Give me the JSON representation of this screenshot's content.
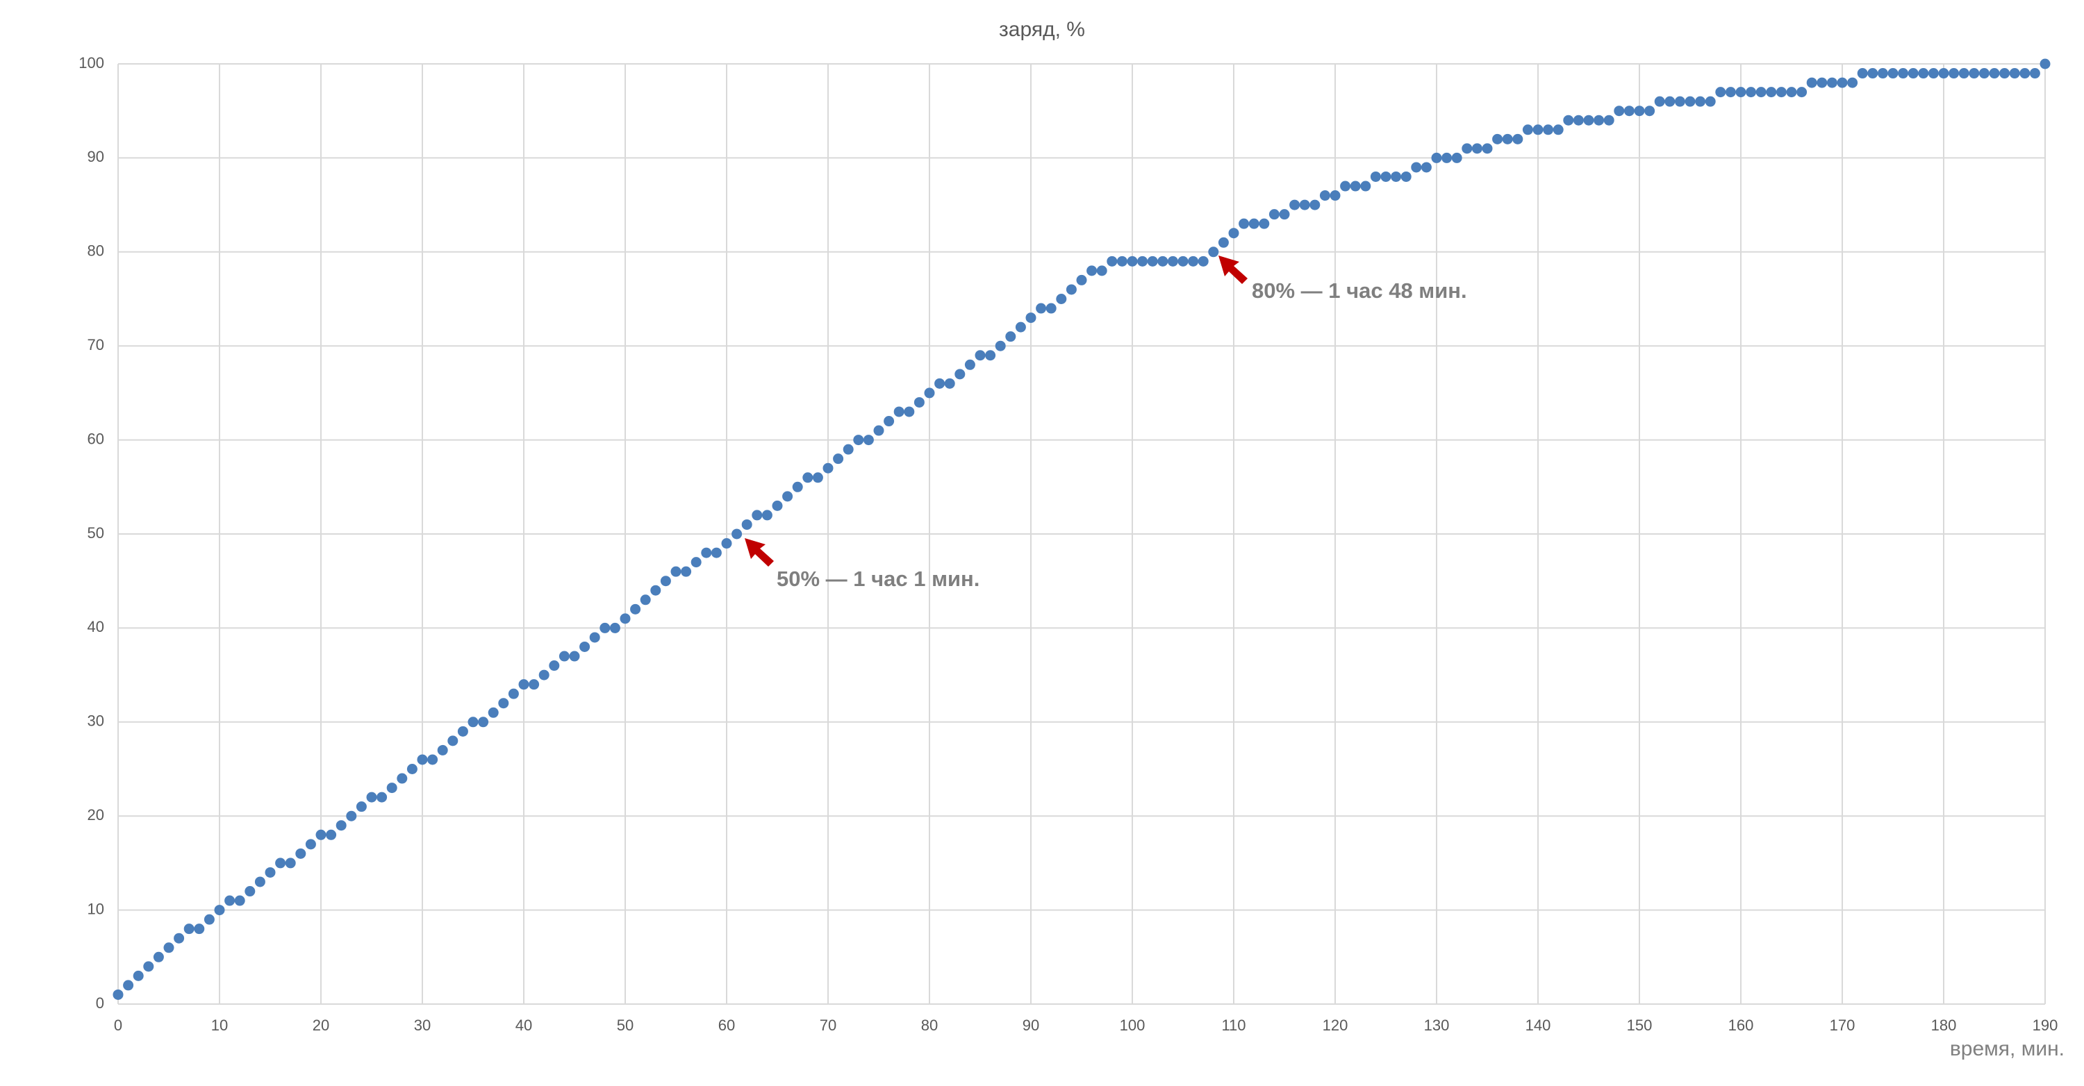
{
  "chart_data": {
    "type": "scatter",
    "title": "заряд, %",
    "x_label": "время, мин.",
    "annotations": [
      "50% — 1 час 1 мин.",
      "80% — 1 час 48 мин."
    ],
    "color": "#4a7ebb",
    "grid": true,
    "xlim": [
      0,
      190
    ],
    "xticks": [
      0,
      10,
      20,
      30,
      40,
      50,
      60,
      70,
      80,
      90,
      100,
      110,
      120,
      130,
      140,
      150,
      160,
      170,
      180,
      190
    ],
    "ylim": [
      0,
      100
    ],
    "yticks": [
      0,
      10,
      20,
      30,
      40,
      50,
      60,
      70,
      80,
      90,
      100
    ],
    "x": [
      0,
      1,
      2,
      3,
      4,
      5,
      6,
      7,
      8,
      9,
      10,
      11,
      12,
      13,
      14,
      15,
      16,
      17,
      18,
      19,
      20,
      21,
      22,
      23,
      24,
      25,
      26,
      27,
      28,
      29,
      30,
      31,
      32,
      33,
      34,
      35,
      36,
      37,
      38,
      39,
      40,
      41,
      42,
      43,
      44,
      45,
      46,
      47,
      48,
      49,
      50,
      51,
      52,
      53,
      54,
      55,
      56,
      57,
      58,
      59,
      60,
      61,
      62,
      63,
      64,
      65,
      66,
      67,
      68,
      69,
      70,
      71,
      72,
      73,
      74,
      75,
      76,
      77,
      78,
      79,
      80,
      81,
      82,
      83,
      84,
      85,
      86,
      87,
      88,
      89,
      90,
      91,
      92,
      93,
      94,
      95,
      96,
      97,
      98,
      99,
      100,
      101,
      102,
      103,
      104,
      105,
      106,
      107,
      108,
      109,
      110,
      111,
      112,
      113,
      114,
      115,
      116,
      117,
      118,
      119,
      120,
      121,
      122,
      123,
      124,
      125,
      126,
      127,
      128,
      129,
      130,
      131,
      132,
      133,
      134,
      135,
      136,
      137,
      138,
      139,
      140,
      141,
      142,
      143,
      144,
      145,
      146,
      147,
      148,
      149,
      150,
      151,
      152,
      153,
      154,
      155,
      156,
      157,
      158,
      159,
      160,
      161,
      162,
      163,
      164,
      165,
      166,
      167,
      168,
      169,
      170,
      171,
      172,
      173,
      174,
      175,
      176,
      177,
      178,
      179,
      180,
      181,
      182,
      183,
      184,
      185,
      186,
      187,
      188,
      189,
      190
    ],
    "values": [
      1,
      2,
      3,
      4,
      5,
      6,
      7,
      8,
      8,
      9,
      10,
      11,
      11,
      12,
      13,
      14,
      15,
      15,
      16,
      17,
      18,
      18,
      19,
      20,
      21,
      22,
      22,
      23,
      24,
      25,
      26,
      26,
      27,
      28,
      29,
      30,
      30,
      31,
      32,
      33,
      34,
      34,
      35,
      36,
      37,
      37,
      38,
      39,
      40,
      40,
      41,
      42,
      43,
      44,
      45,
      46,
      46,
      47,
      48,
      48,
      49,
      50,
      51,
      52,
      52,
      53,
      54,
      55,
      56,
      56,
      57,
      58,
      59,
      60,
      60,
      61,
      62,
      63,
      63,
      64,
      65,
      66,
      66,
      67,
      68,
      69,
      69,
      70,
      71,
      72,
      73,
      74,
      74,
      75,
      76,
      77,
      78,
      78,
      79,
      79,
      79,
      79,
      79,
      79,
      79,
      79,
      79,
      79,
      80,
      81,
      82,
      83,
      83,
      83,
      84,
      84,
      85,
      85,
      85,
      86,
      86,
      87,
      87,
      87,
      88,
      88,
      88,
      88,
      89,
      89,
      90,
      90,
      90,
      91,
      91,
      91,
      92,
      92,
      92,
      93,
      93,
      93,
      93,
      94,
      94,
      94,
      94,
      94,
      95,
      95,
      95,
      95,
      96,
      96,
      96,
      96,
      96,
      96,
      97,
      97,
      97,
      97,
      97,
      97,
      97,
      97,
      97,
      98,
      98,
      98,
      98,
      98,
      99,
      99,
      99,
      99,
      99,
      99,
      99,
      99,
      99,
      99,
      99,
      99,
      99,
      99,
      99,
      99,
      99,
      99,
      100
    ]
  }
}
